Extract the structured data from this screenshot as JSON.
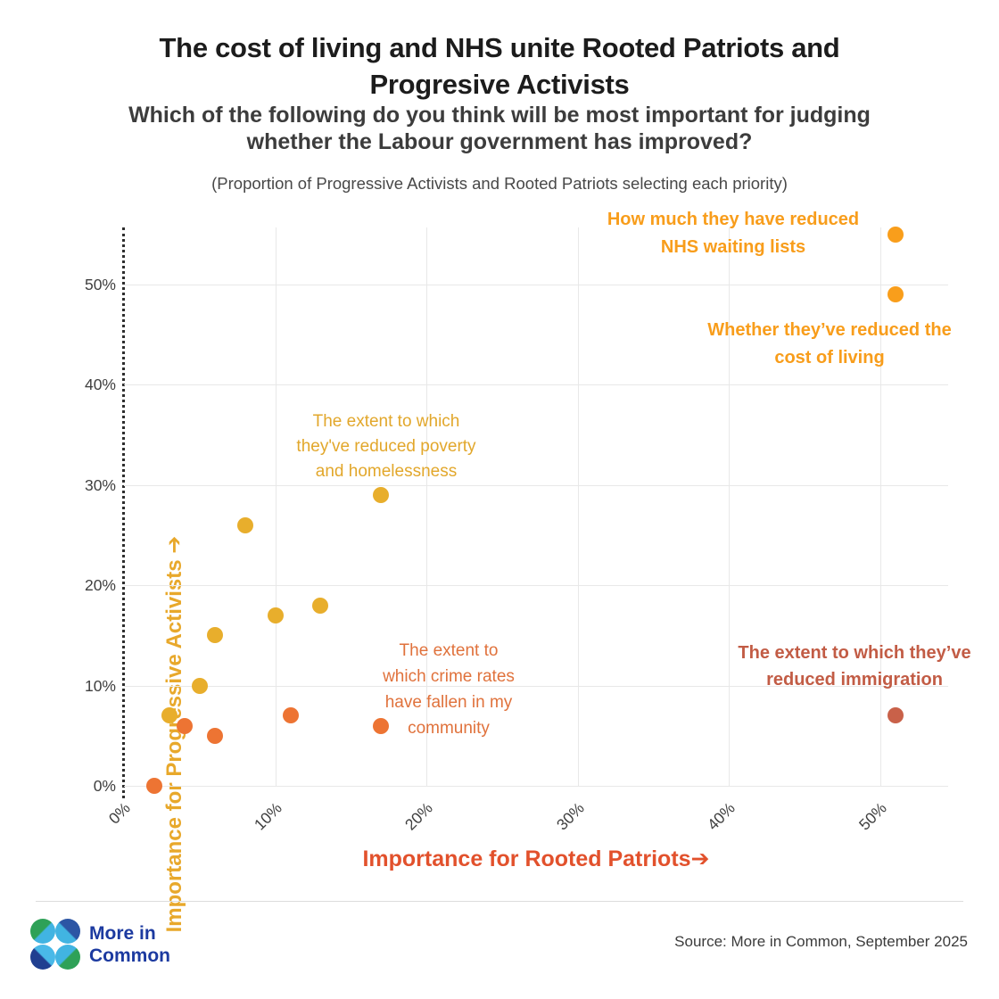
{
  "header": {
    "title": "The cost of living and NHS unite Rooted Patriots and\nProgresive Activists",
    "subtitle": "Which of the following do you think will be most important for judging\nwhether the Labour government has improved?",
    "caption": "(Proportion of Progressive Activists and Rooted Patriots selecting each priority)"
  },
  "chart_data": {
    "type": "scatter",
    "xlabel": "Importance for Rooted Patriots➔",
    "ylabel": "Importance for Progressive Activists ➔",
    "x_ticks": [
      "0%",
      "10%",
      "20%",
      "30%",
      "40%",
      "50%"
    ],
    "y_ticks": [
      "0%",
      "10%",
      "20%",
      "30%",
      "40%",
      "50%"
    ],
    "xlim": [
      0,
      54.5
    ],
    "ylim": [
      0,
      55.7
    ],
    "grid": true,
    "axis_unit": "percent selecting each priority",
    "series": [
      {
        "name": "progressive-activist-leaning-priorities",
        "color": "#e8ae2c",
        "points": [
          [
            3,
            7
          ],
          [
            5,
            10
          ],
          [
            6,
            15
          ],
          [
            8,
            26
          ],
          [
            10,
            17
          ],
          [
            13,
            18
          ],
          [
            17,
            29
          ]
        ]
      },
      {
        "name": "shared-top-priorities",
        "color": "#f99e1b",
        "points": [
          [
            51,
            55
          ],
          [
            51,
            49
          ]
        ]
      },
      {
        "name": "rooted-patriot-leaning-priorities",
        "color": "#ed7433",
        "points": [
          [
            2,
            0
          ],
          [
            4,
            6
          ],
          [
            6,
            5
          ],
          [
            11,
            7
          ],
          [
            17,
            6
          ]
        ]
      },
      {
        "name": "immigration-priority",
        "color": "#c96149",
        "points": [
          [
            51,
            7
          ]
        ]
      }
    ],
    "annotations": [
      {
        "text": "How much they have reduced\nNHS waiting lists",
        "color": "#f89d1b",
        "bold": true,
        "point": [
          51,
          55
        ]
      },
      {
        "text": "Whether they’ve reduced the\ncost of living",
        "color": "#f89d1b",
        "bold": true,
        "point": [
          51,
          49
        ]
      },
      {
        "text": "The extent to which\nthey've reduced poverty\nand homelessness",
        "color": "#e2a72b",
        "bold": false,
        "point": [
          17,
          29
        ]
      },
      {
        "text": "The extent to\nwhich crime rates\nhave fallen in my\ncommunity",
        "color": "#e0723c",
        "bold": false,
        "point": [
          17,
          6
        ]
      },
      {
        "text": "The extent to which they’ve\nreduced immigration",
        "color": "#c25c45",
        "bold": true,
        "point": [
          51,
          7
        ]
      }
    ]
  },
  "footer": {
    "logo_text": "More in\nCommon",
    "source": "Source: More in Common, September 2025"
  }
}
